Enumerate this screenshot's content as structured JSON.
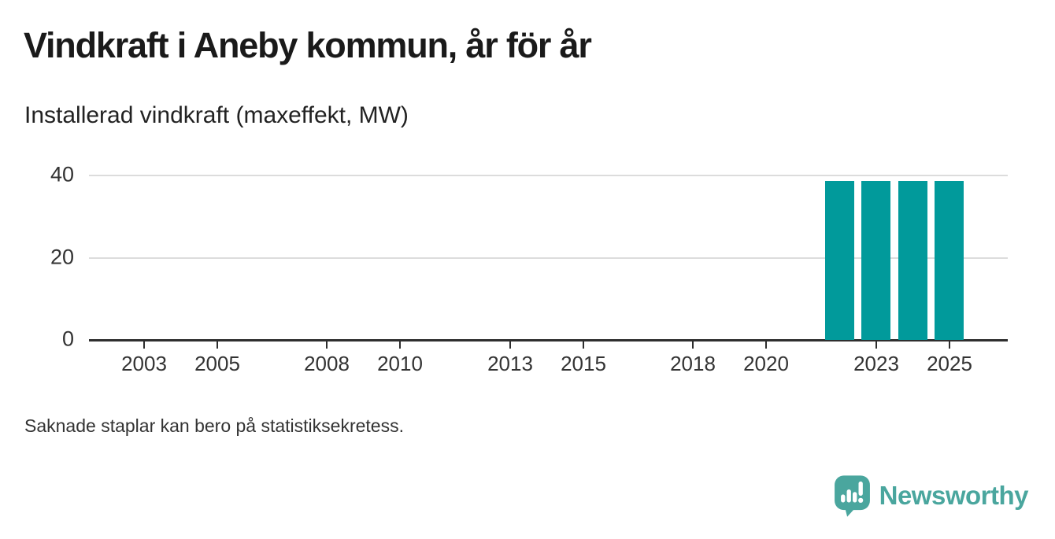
{
  "header": {
    "title": "Vindkraft i Aneby kommun, år för år",
    "subtitle": "Installerad vindkraft (maxeffekt, MW)"
  },
  "chart_data": {
    "type": "bar",
    "title": "Vindkraft i Aneby kommun, år för år",
    "ylabel": "Installerad vindkraft (maxeffekt, MW)",
    "categories": [
      2002,
      2003,
      2004,
      2005,
      2006,
      2007,
      2008,
      2009,
      2010,
      2011,
      2012,
      2013,
      2014,
      2015,
      2016,
      2017,
      2018,
      2019,
      2020,
      2021,
      2022,
      2023,
      2024,
      2025
    ],
    "values": [
      null,
      null,
      null,
      null,
      null,
      null,
      null,
      null,
      null,
      null,
      null,
      null,
      null,
      null,
      null,
      null,
      null,
      null,
      null,
      null,
      38.7,
      38.7,
      38.7,
      38.7
    ],
    "xticks": [
      2003,
      2005,
      2008,
      2010,
      2013,
      2015,
      2018,
      2020,
      2023,
      2025
    ],
    "yticks": [
      0,
      20,
      40
    ],
    "xlim": [
      2001.5,
      2026.6
    ],
    "ylim": [
      0,
      40
    ],
    "grid": "horizontal-only",
    "legend": "none",
    "bar_color": "#019a9b",
    "bar_width_fraction": 0.79
  },
  "footer": {
    "note": "Saknade staplar kan bero på statistiksekretess.",
    "brand": "Newsworthy"
  },
  "colors": {
    "background": "#ffffff",
    "title_text": "#1a1a1a",
    "body_text": "#333333",
    "axis": "#2e2e2e",
    "gridline": "#dcdcdc",
    "bar": "#019a9b",
    "brand": "#4aa69e"
  }
}
